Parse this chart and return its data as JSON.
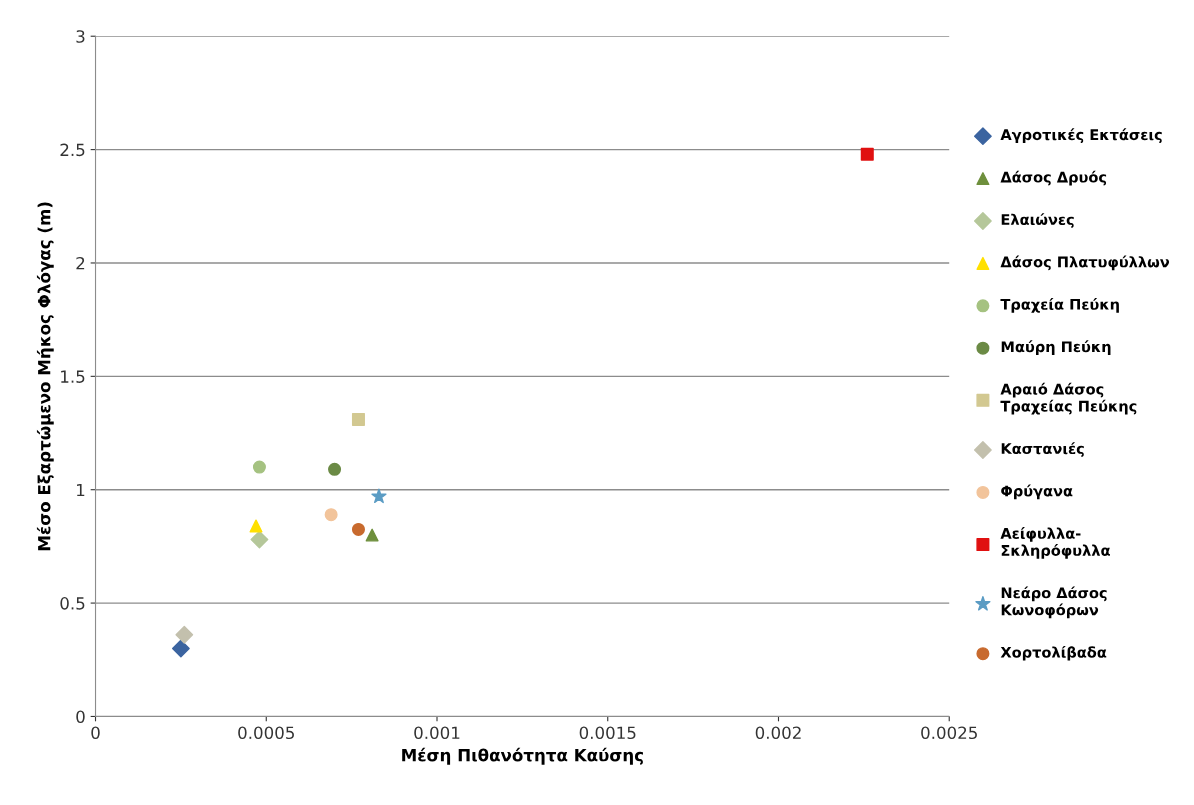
{
  "chart_data": {
    "type": "scatter",
    "xlabel": "Μέση Πιθανότητα Καύσης",
    "ylabel": "Μέσο Εξαρτώμενο Μήκος Φλόγας (m)",
    "xlim": [
      0,
      0.0025
    ],
    "xticks": [
      0,
      0.0005,
      0.001,
      0.0015,
      0.002,
      0.0025
    ],
    "ylim": [
      0,
      3
    ],
    "yticks": [
      0,
      0.5,
      1,
      1.5,
      2,
      2.5,
      3
    ],
    "grid": "y",
    "legend": "right",
    "series": [
      {
        "name": "Αγροτικές Εκτάσεις",
        "color": "#3b64a0",
        "marker": "diamond",
        "x": [
          0.00025
        ],
        "values": [
          0.3
        ]
      },
      {
        "name": "Δάσος Δρυός",
        "color": "#6e8f3c",
        "marker": "triangle",
        "x": [
          0.00081
        ],
        "values": [
          0.8
        ]
      },
      {
        "name": "Ελαιώνες",
        "color": "#b5c79a",
        "marker": "diamond",
        "x": [
          0.00048
        ],
        "values": [
          0.78
        ]
      },
      {
        "name": "Δάσος Πλατυφύλλων",
        "color": "#ffe000",
        "marker": "triangle",
        "x": [
          0.00047
        ],
        "values": [
          0.84
        ]
      },
      {
        "name": "Τραχεία Πεύκη",
        "color": "#a5c281",
        "marker": "circle",
        "x": [
          0.00048
        ],
        "values": [
          1.1
        ]
      },
      {
        "name": "Μαύρη Πεύκη",
        "color": "#6b8a45",
        "marker": "circle",
        "x": [
          0.0007
        ],
        "values": [
          1.09
        ]
      },
      {
        "name": "Αραιό Δάσος\nΤραχείας Πεύκης",
        "color": "#d2c891",
        "marker": "square",
        "x": [
          0.00077
        ],
        "values": [
          1.31
        ]
      },
      {
        "name": "Καστανιές",
        "color": "#c3c0ad",
        "marker": "diamond",
        "x": [
          0.00026
        ],
        "values": [
          0.36
        ]
      },
      {
        "name": "Φρύγανα",
        "color": "#f2c49b",
        "marker": "circle",
        "x": [
          0.00069
        ],
        "values": [
          0.89
        ]
      },
      {
        "name": "Αείφυλλα-\nΣκληρόφυλλα",
        "color": "#e01010",
        "marker": "square",
        "x": [
          0.00226
        ],
        "values": [
          2.48
        ]
      },
      {
        "name": "Νεάρο Δάσος\nΚωνοφόρων",
        "color": "#5b9cc4",
        "marker": "star",
        "x": [
          0.00083
        ],
        "values": [
          0.97
        ]
      },
      {
        "name": "Χορτολίβαδα",
        "color": "#c86a2e",
        "marker": "circle",
        "x": [
          0.00077
        ],
        "values": [
          0.825
        ]
      }
    ]
  }
}
